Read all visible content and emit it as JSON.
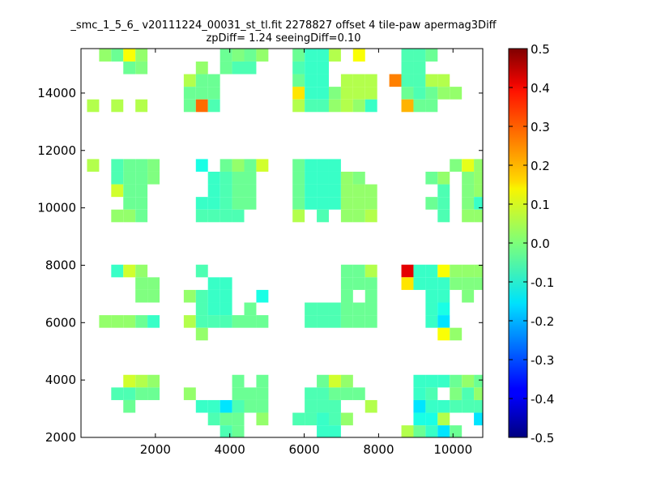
{
  "chart_data": {
    "type": "heatmap",
    "title": "_smc_1_5_6_ v20111224_00031_st_tl.fit 2278827 offset 4 tile-paw apermag3Diff",
    "subtitle": "zpDiff= 1.24 seeingDiff=0.10",
    "xlabel": "",
    "ylabel": "",
    "xlim": [
      0,
      10800
    ],
    "ylim": [
      2000,
      15550
    ],
    "xticks": [
      "2000",
      "4000",
      "6000",
      "8000",
      "10000"
    ],
    "yticks": [
      "2000",
      "4000",
      "6000",
      "8000",
      "10000",
      "12000",
      "14000"
    ],
    "grid": false,
    "colorbar": {
      "min": -0.5,
      "max": 0.5,
      "colormap": "jet",
      "ticks": [
        "-0.5",
        "-0.4",
        "-0.3",
        "-0.2",
        "-0.1",
        "0.0",
        "0.1",
        "0.2",
        "0.3",
        "0.4",
        "0.5"
      ]
    },
    "cell_size": {
      "x": 325,
      "y": 440
    },
    "cells": [
      [
        650,
        15320,
        0.02
      ],
      [
        975,
        15320,
        -0.02
      ],
      [
        1300,
        15320,
        0.12
      ],
      [
        1625,
        15320,
        0.02
      ],
      [
        3900,
        15320,
        -0.02
      ],
      [
        4225,
        15320,
        0.0
      ],
      [
        4550,
        15320,
        -0.02
      ],
      [
        4875,
        15320,
        0.02
      ],
      [
        5850,
        15320,
        -0.02
      ],
      [
        6175,
        15320,
        -0.07
      ],
      [
        6500,
        15320,
        -0.07
      ],
      [
        6825,
        15320,
        0.05
      ],
      [
        7475,
        15320,
        0.12
      ],
      [
        8775,
        15320,
        -0.05
      ],
      [
        9100,
        15320,
        -0.05
      ],
      [
        9425,
        15320,
        -0.02
      ],
      [
        1300,
        14880,
        -0.02
      ],
      [
        1625,
        14880,
        0.0
      ],
      [
        3250,
        14880,
        0.02
      ],
      [
        3900,
        14880,
        -0.02
      ],
      [
        4225,
        14880,
        -0.05
      ],
      [
        4550,
        14880,
        -0.05
      ],
      [
        5850,
        14880,
        -0.05
      ],
      [
        6175,
        14880,
        -0.07
      ],
      [
        6500,
        14880,
        -0.07
      ],
      [
        8775,
        14880,
        -0.05
      ],
      [
        9100,
        14880,
        -0.05
      ],
      [
        2925,
        14440,
        0.05
      ],
      [
        3250,
        14440,
        -0.02
      ],
      [
        3575,
        14440,
        -0.02
      ],
      [
        5850,
        14440,
        -0.02
      ],
      [
        6175,
        14440,
        -0.07
      ],
      [
        6500,
        14440,
        -0.07
      ],
      [
        7150,
        14440,
        0.05
      ],
      [
        7475,
        14440,
        0.05
      ],
      [
        7800,
        14440,
        0.05
      ],
      [
        8450,
        14440,
        0.25
      ],
      [
        8775,
        14440,
        -0.05
      ],
      [
        9100,
        14440,
        -0.05
      ],
      [
        9425,
        14440,
        0.05
      ],
      [
        9750,
        14440,
        0.05
      ],
      [
        2925,
        14000,
        -0.02
      ],
      [
        3250,
        14000,
        -0.02
      ],
      [
        3575,
        14000,
        -0.02
      ],
      [
        5850,
        14000,
        0.15
      ],
      [
        6175,
        14000,
        -0.07
      ],
      [
        6500,
        14000,
        -0.07
      ],
      [
        6825,
        14000,
        0.0
      ],
      [
        7150,
        14000,
        0.05
      ],
      [
        7475,
        14000,
        0.05
      ],
      [
        7800,
        14000,
        0.05
      ],
      [
        8775,
        14000,
        -0.02
      ],
      [
        9100,
        14000,
        -0.05
      ],
      [
        9425,
        14000,
        -0.02
      ],
      [
        9750,
        14000,
        0.02
      ],
      [
        10075,
        14000,
        0.02
      ],
      [
        325,
        13560,
        0.05
      ],
      [
        975,
        13560,
        0.05
      ],
      [
        1625,
        13560,
        0.05
      ],
      [
        2925,
        13560,
        -0.02
      ],
      [
        3250,
        13560,
        0.27
      ],
      [
        3575,
        13560,
        -0.05
      ],
      [
        5850,
        13560,
        0.05
      ],
      [
        6175,
        13560,
        -0.05
      ],
      [
        6500,
        13560,
        -0.05
      ],
      [
        6825,
        13560,
        0.02
      ],
      [
        7150,
        13560,
        0.05
      ],
      [
        7475,
        13560,
        0.02
      ],
      [
        7800,
        13560,
        -0.07
      ],
      [
        8775,
        13560,
        0.2
      ],
      [
        9100,
        13560,
        -0.02
      ],
      [
        9425,
        13560,
        -0.02
      ],
      [
        325,
        11480,
        0.05
      ],
      [
        975,
        11480,
        -0.05
      ],
      [
        1300,
        11480,
        -0.02
      ],
      [
        1625,
        11480,
        -0.02
      ],
      [
        1950,
        11480,
        0.0
      ],
      [
        3250,
        11480,
        -0.1
      ],
      [
        3900,
        11480,
        -0.02
      ],
      [
        4225,
        11480,
        0.02
      ],
      [
        4550,
        11480,
        -0.02
      ],
      [
        4875,
        11480,
        0.08
      ],
      [
        5850,
        11480,
        -0.02
      ],
      [
        6175,
        11480,
        -0.07
      ],
      [
        6500,
        11480,
        -0.07
      ],
      [
        6825,
        11480,
        -0.07
      ],
      [
        10075,
        11480,
        0.0
      ],
      [
        10400,
        11480,
        0.1
      ],
      [
        10725,
        11480,
        0.02
      ],
      [
        975,
        11040,
        -0.05
      ],
      [
        1300,
        11040,
        -0.02
      ],
      [
        1625,
        11040,
        -0.02
      ],
      [
        1950,
        11040,
        0.0
      ],
      [
        3575,
        11040,
        -0.07
      ],
      [
        3900,
        11040,
        -0.05
      ],
      [
        4225,
        11040,
        -0.02
      ],
      [
        4550,
        11040,
        -0.02
      ],
      [
        5850,
        11040,
        -0.02
      ],
      [
        6175,
        11040,
        -0.07
      ],
      [
        6500,
        11040,
        -0.07
      ],
      [
        6825,
        11040,
        -0.07
      ],
      [
        7150,
        11040,
        0.02
      ],
      [
        7475,
        11040,
        0.0
      ],
      [
        9425,
        11040,
        -0.02
      ],
      [
        9750,
        11040,
        0.02
      ],
      [
        10400,
        11040,
        0.0
      ],
      [
        10725,
        11040,
        0.02
      ],
      [
        975,
        10600,
        0.08
      ],
      [
        1300,
        10600,
        -0.02
      ],
      [
        1625,
        10600,
        -0.02
      ],
      [
        3575,
        10600,
        -0.07
      ],
      [
        3900,
        10600,
        -0.05
      ],
      [
        4225,
        10600,
        -0.02
      ],
      [
        4550,
        10600,
        -0.02
      ],
      [
        5850,
        10600,
        -0.02
      ],
      [
        6175,
        10600,
        -0.07
      ],
      [
        6500,
        10600,
        -0.07
      ],
      [
        6825,
        10600,
        -0.07
      ],
      [
        7150,
        10600,
        0.02
      ],
      [
        7475,
        10600,
        0.02
      ],
      [
        7800,
        10600,
        0.02
      ],
      [
        9750,
        10600,
        -0.05
      ],
      [
        10400,
        10600,
        0.0
      ],
      [
        10725,
        10600,
        0.02
      ],
      [
        1300,
        10160,
        -0.02
      ],
      [
        1625,
        10160,
        -0.02
      ],
      [
        3250,
        10160,
        -0.07
      ],
      [
        3575,
        10160,
        -0.07
      ],
      [
        3900,
        10160,
        -0.05
      ],
      [
        4225,
        10160,
        -0.02
      ],
      [
        4550,
        10160,
        -0.02
      ],
      [
        5850,
        10160,
        -0.02
      ],
      [
        6175,
        10160,
        -0.07
      ],
      [
        6500,
        10160,
        -0.07
      ],
      [
        6825,
        10160,
        -0.07
      ],
      [
        7150,
        10160,
        0.02
      ],
      [
        7475,
        10160,
        0.02
      ],
      [
        7800,
        10160,
        0.02
      ],
      [
        9425,
        10160,
        -0.02
      ],
      [
        9750,
        10160,
        -0.05
      ],
      [
        10400,
        10160,
        0.0
      ],
      [
        10725,
        10160,
        -0.07
      ],
      [
        975,
        9720,
        0.02
      ],
      [
        1300,
        9720,
        0.02
      ],
      [
        1625,
        9720,
        -0.02
      ],
      [
        3250,
        9720,
        -0.05
      ],
      [
        3575,
        9720,
        -0.05
      ],
      [
        3900,
        9720,
        -0.05
      ],
      [
        4225,
        9720,
        -0.05
      ],
      [
        5850,
        9720,
        0.05
      ],
      [
        6500,
        9720,
        -0.05
      ],
      [
        7150,
        9720,
        0.02
      ],
      [
        7475,
        9720,
        0.02
      ],
      [
        7800,
        9720,
        0.05
      ],
      [
        9750,
        9720,
        -0.05
      ],
      [
        10400,
        9720,
        0.02
      ],
      [
        10725,
        9720,
        0.02
      ],
      [
        975,
        7800,
        -0.07
      ],
      [
        1300,
        7800,
        0.08
      ],
      [
        1625,
        7800,
        0.02
      ],
      [
        3250,
        7800,
        -0.05
      ],
      [
        7150,
        7800,
        -0.02
      ],
      [
        7475,
        7800,
        -0.02
      ],
      [
        7800,
        7800,
        0.05
      ],
      [
        8775,
        7800,
        0.4
      ],
      [
        9100,
        7800,
        -0.07
      ],
      [
        9425,
        7800,
        -0.07
      ],
      [
        9750,
        7800,
        0.12
      ],
      [
        10075,
        7800,
        0.02
      ],
      [
        10400,
        7800,
        0.02
      ],
      [
        10725,
        7800,
        0.02
      ],
      [
        1625,
        7360,
        0.0
      ],
      [
        1950,
        7360,
        0.0
      ],
      [
        3575,
        7360,
        -0.07
      ],
      [
        3900,
        7360,
        -0.07
      ],
      [
        7150,
        7360,
        -0.02
      ],
      [
        7475,
        7360,
        -0.02
      ],
      [
        7800,
        7360,
        -0.02
      ],
      [
        8775,
        7360,
        0.15
      ],
      [
        9100,
        7360,
        -0.07
      ],
      [
        9425,
        7360,
        -0.07
      ],
      [
        9750,
        7360,
        -0.07
      ],
      [
        10075,
        7360,
        0.0
      ],
      [
        10400,
        7360,
        0.0
      ],
      [
        10725,
        7360,
        0.0
      ],
      [
        1625,
        6920,
        0.0
      ],
      [
        1950,
        6920,
        0.0
      ],
      [
        2925,
        6920,
        0.02
      ],
      [
        3250,
        6920,
        -0.05
      ],
      [
        3575,
        6920,
        -0.07
      ],
      [
        3900,
        6920,
        -0.07
      ],
      [
        4875,
        6920,
        -0.1
      ],
      [
        7150,
        6920,
        -0.02
      ],
      [
        7800,
        6920,
        -0.02
      ],
      [
        9425,
        6920,
        -0.07
      ],
      [
        9750,
        6920,
        -0.07
      ],
      [
        10400,
        6920,
        0.0
      ],
      [
        3250,
        6480,
        -0.05
      ],
      [
        3575,
        6480,
        -0.07
      ],
      [
        3900,
        6480,
        -0.07
      ],
      [
        4550,
        6480,
        -0.02
      ],
      [
        6175,
        6480,
        -0.05
      ],
      [
        6500,
        6480,
        -0.05
      ],
      [
        6825,
        6480,
        -0.05
      ],
      [
        7150,
        6480,
        -0.02
      ],
      [
        7475,
        6480,
        -0.02
      ],
      [
        7800,
        6480,
        -0.02
      ],
      [
        9425,
        6480,
        -0.07
      ],
      [
        9750,
        6480,
        -0.1
      ],
      [
        650,
        6040,
        0.02
      ],
      [
        975,
        6040,
        0.02
      ],
      [
        1300,
        6040,
        0.02
      ],
      [
        1625,
        6040,
        -0.02
      ],
      [
        1950,
        6040,
        -0.07
      ],
      [
        2925,
        6040,
        0.05
      ],
      [
        3250,
        6040,
        -0.05
      ],
      [
        3575,
        6040,
        -0.05
      ],
      [
        3900,
        6040,
        -0.05
      ],
      [
        4225,
        6040,
        -0.02
      ],
      [
        4550,
        6040,
        -0.02
      ],
      [
        4875,
        6040,
        -0.02
      ],
      [
        6175,
        6040,
        -0.05
      ],
      [
        6500,
        6040,
        -0.05
      ],
      [
        6825,
        6040,
        -0.05
      ],
      [
        7150,
        6040,
        -0.02
      ],
      [
        7475,
        6040,
        -0.02
      ],
      [
        7800,
        6040,
        -0.02
      ],
      [
        9425,
        6040,
        -0.07
      ],
      [
        9750,
        6040,
        -0.15
      ],
      [
        3250,
        5600,
        0.02
      ],
      [
        9750,
        5600,
        0.12
      ],
      [
        10075,
        5600,
        0.02
      ],
      [
        1300,
        3960,
        0.08
      ],
      [
        1625,
        3960,
        0.05
      ],
      [
        1950,
        3960,
        0.02
      ],
      [
        4225,
        3960,
        -0.02
      ],
      [
        4875,
        3960,
        -0.02
      ],
      [
        6500,
        3960,
        -0.02
      ],
      [
        6825,
        3960,
        0.08
      ],
      [
        7150,
        3960,
        0.02
      ],
      [
        9100,
        3960,
        -0.07
      ],
      [
        9425,
        3960,
        -0.07
      ],
      [
        9750,
        3960,
        -0.07
      ],
      [
        10075,
        3960,
        -0.02
      ],
      [
        10400,
        3960,
        0.02
      ],
      [
        10725,
        3960,
        -0.02
      ],
      [
        975,
        3520,
        -0.05
      ],
      [
        1300,
        3520,
        -0.05
      ],
      [
        1625,
        3520,
        -0.02
      ],
      [
        1950,
        3520,
        -0.02
      ],
      [
        2925,
        3520,
        0.02
      ],
      [
        4225,
        3520,
        -0.02
      ],
      [
        4550,
        3520,
        -0.02
      ],
      [
        4875,
        3520,
        -0.02
      ],
      [
        6175,
        3520,
        -0.05
      ],
      [
        6500,
        3520,
        -0.05
      ],
      [
        6825,
        3520,
        -0.02
      ],
      [
        7150,
        3520,
        -0.02
      ],
      [
        7475,
        3520,
        -0.02
      ],
      [
        9100,
        3520,
        -0.07
      ],
      [
        9425,
        3520,
        -0.05
      ],
      [
        10075,
        3520,
        0.0
      ],
      [
        10400,
        3520,
        -0.05
      ],
      [
        10725,
        3520,
        0.02
      ],
      [
        1300,
        3080,
        -0.02
      ],
      [
        3250,
        3080,
        -0.07
      ],
      [
        3575,
        3080,
        -0.07
      ],
      [
        3900,
        3080,
        -0.15
      ],
      [
        4225,
        3080,
        -0.05
      ],
      [
        4550,
        3080,
        -0.02
      ],
      [
        4875,
        3080,
        -0.02
      ],
      [
        6175,
        3080,
        -0.05
      ],
      [
        6500,
        3080,
        -0.05
      ],
      [
        6825,
        3080,
        -0.05
      ],
      [
        7800,
        3080,
        0.05
      ],
      [
        9100,
        3080,
        -0.15
      ],
      [
        9425,
        3080,
        -0.07
      ],
      [
        9750,
        3080,
        -0.07
      ],
      [
        10075,
        3080,
        -0.05
      ],
      [
        10400,
        3080,
        -0.05
      ],
      [
        10725,
        3080,
        -0.05
      ],
      [
        3575,
        2640,
        -0.05
      ],
      [
        3900,
        2640,
        -0.02
      ],
      [
        4225,
        2640,
        -0.02
      ],
      [
        4875,
        2640,
        0.02
      ],
      [
        5850,
        2640,
        -0.05
      ],
      [
        6175,
        2640,
        -0.05
      ],
      [
        6500,
        2640,
        -0.07
      ],
      [
        6825,
        2640,
        -0.05
      ],
      [
        7150,
        2640,
        0.02
      ],
      [
        9100,
        2640,
        -0.1
      ],
      [
        9425,
        2640,
        -0.1
      ],
      [
        9750,
        2640,
        0.05
      ],
      [
        10725,
        2640,
        -0.15
      ],
      [
        3900,
        2200,
        -0.05
      ],
      [
        4225,
        2200,
        -0.02
      ],
      [
        6500,
        2200,
        -0.07
      ],
      [
        6825,
        2200,
        -0.07
      ],
      [
        8775,
        2200,
        0.05
      ],
      [
        9100,
        2200,
        -0.02
      ],
      [
        9425,
        2200,
        -0.07
      ],
      [
        9750,
        2200,
        -0.15
      ],
      [
        10075,
        2200,
        -0.02
      ]
    ]
  }
}
